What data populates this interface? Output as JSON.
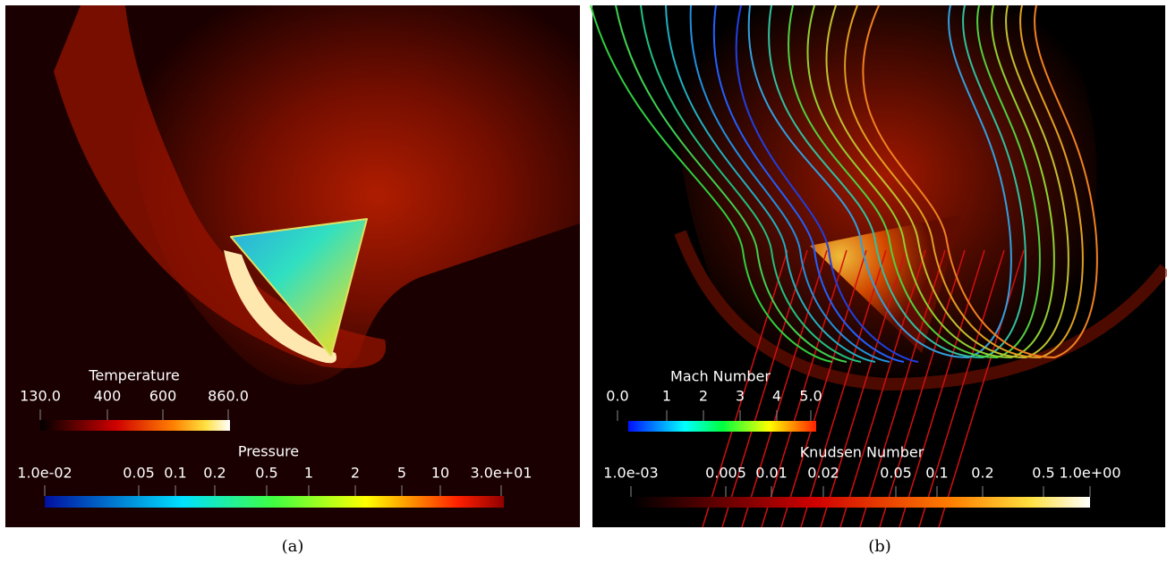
{
  "panels": [
    {
      "caption": "(a)",
      "colorbars": [
        {
          "title": "Temperature",
          "ticks": [
            "130.0",
            "400",
            "600",
            "860.0"
          ]
        },
        {
          "title": "Pressure",
          "ticks": [
            "1.0e-02",
            "0.05",
            "0.1",
            "0.2",
            "0.5",
            "1",
            "2",
            "5",
            "10",
            "3.0e+01"
          ]
        }
      ]
    },
    {
      "caption": "(b)",
      "colorbars": [
        {
          "title": "Mach Number",
          "ticks": [
            "0.0",
            "1",
            "2",
            "3",
            "4",
            "5.0"
          ]
        },
        {
          "title": "Knudsen Number",
          "ticks": [
            "1.0e-03",
            "0.005",
            "0.01",
            "0.02",
            "0.05",
            "0.1",
            "0.2",
            "0.5",
            "1.0e+00"
          ]
        }
      ]
    }
  ]
}
